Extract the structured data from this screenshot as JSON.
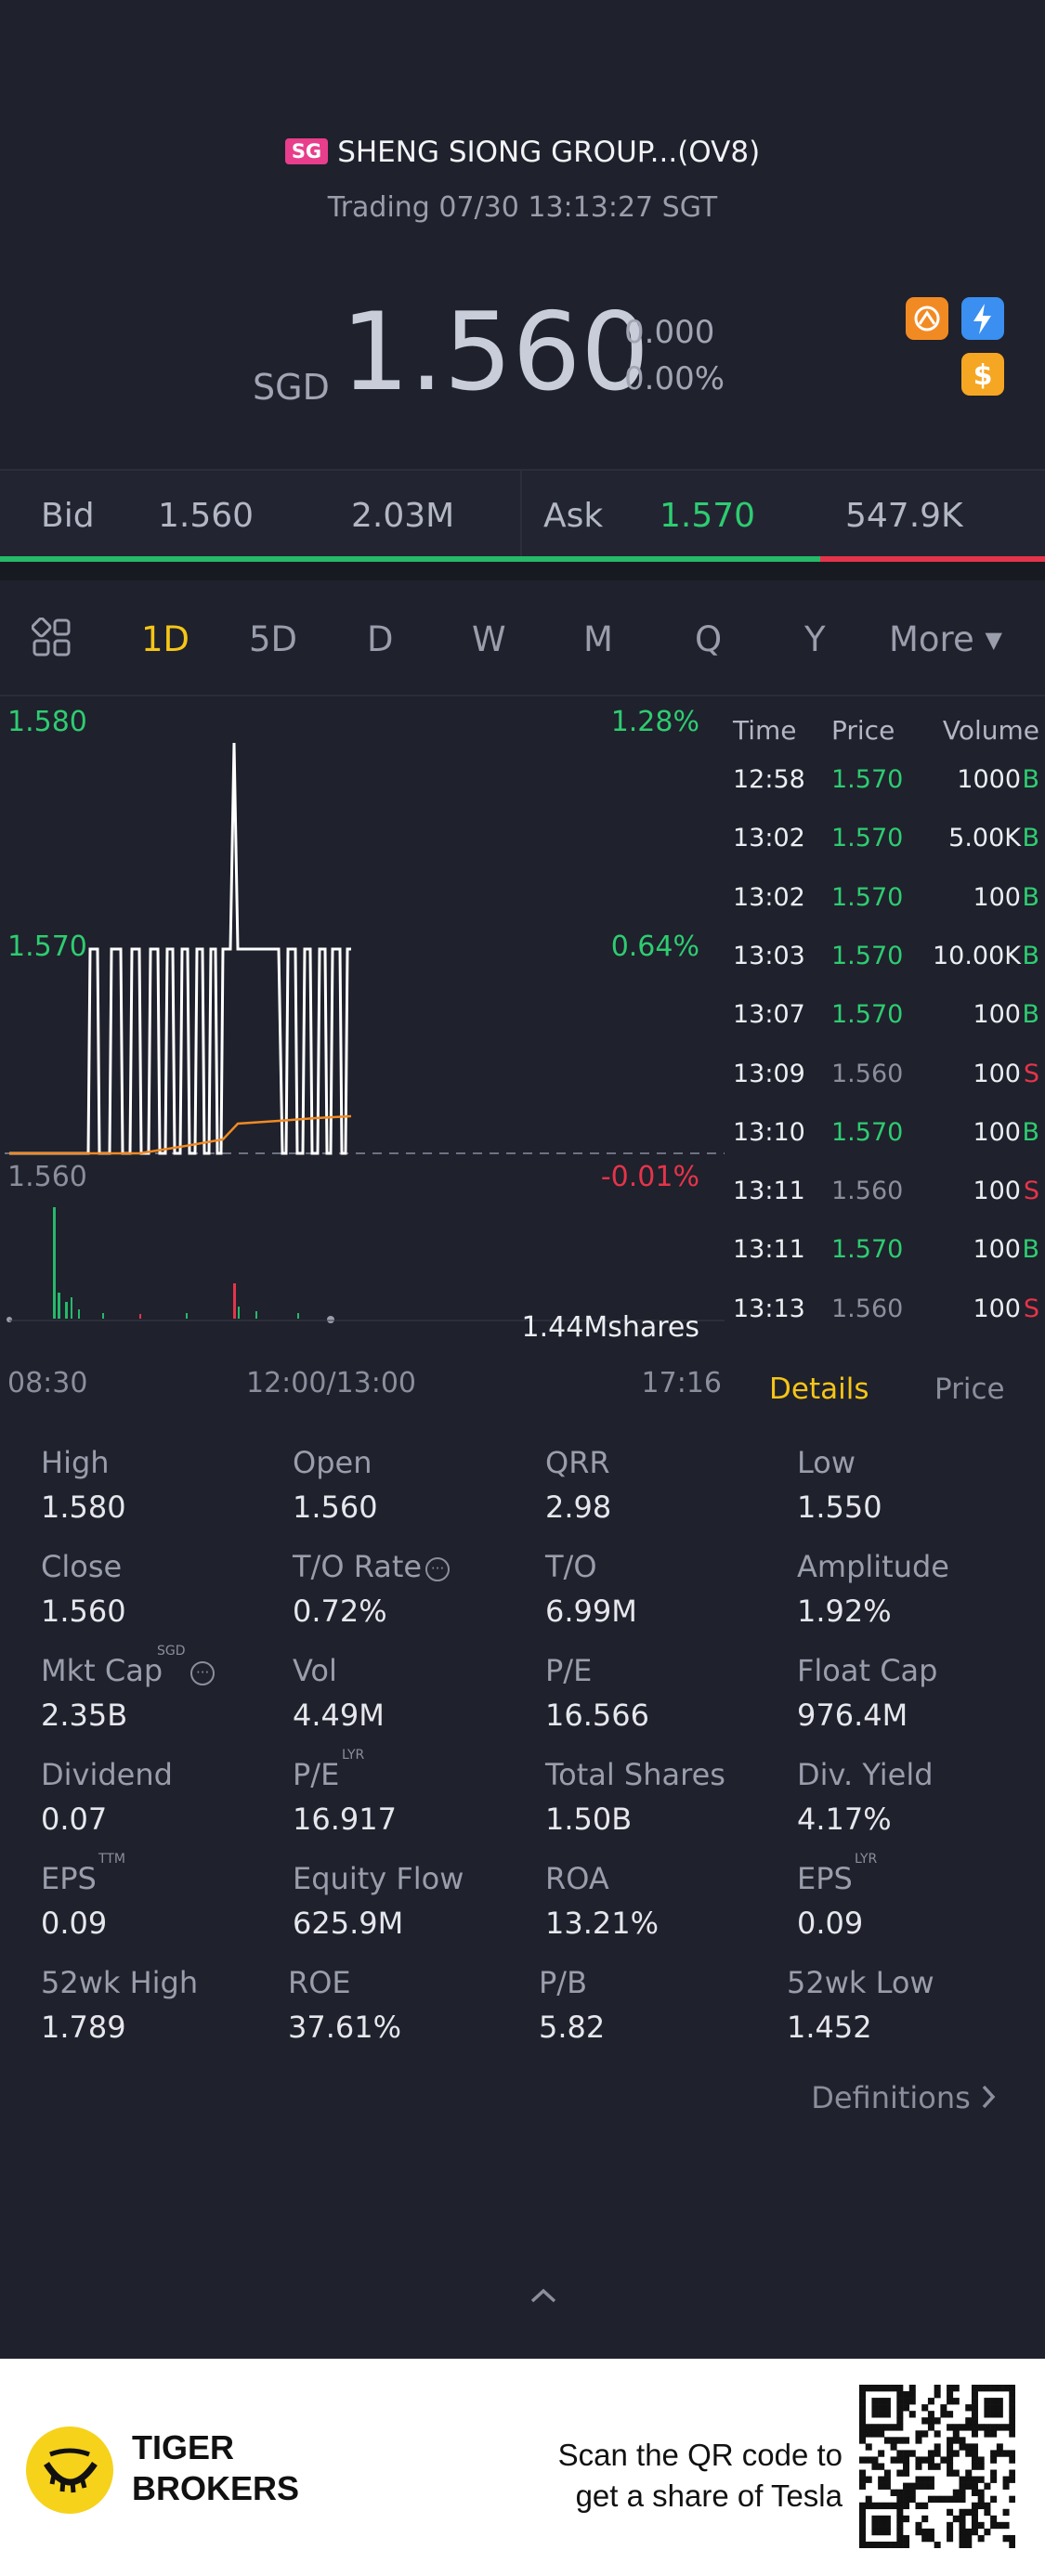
{
  "stock": {
    "market_badge": "SG",
    "name": "SHENG SIONG GROUP...(OV8)",
    "status": "Trading 07/30 13:13:27 SGT",
    "currency": "SGD",
    "price": "1.560",
    "change": "0.000",
    "change_pct": "0.00%"
  },
  "bidask": {
    "bid_label": "Bid",
    "bid_price": "1.560",
    "bid_size": "2.03M",
    "ask_label": "Ask",
    "ask_price": "1.570",
    "ask_size": "547.9K",
    "bid_ratio": 0.785
  },
  "tabs": [
    "1D",
    "5D",
    "D",
    "W",
    "M",
    "Q",
    "Y",
    "More"
  ],
  "active_tab": "1D",
  "chart": {
    "y_high": "1.580",
    "y_mid": "1.570",
    "y_low": "1.560",
    "pct_high": "1.28%",
    "pct_mid": "0.64%",
    "pct_low": "-0.01%",
    "volume_label": "1.44Mshares",
    "x_start": "08:30",
    "x_mid": "12:00/13:00",
    "x_end": "17:16"
  },
  "chart_data": {
    "type": "line",
    "x": [
      "08:30",
      "12:00/13:00",
      "17:16"
    ],
    "ylim": [
      1.56,
      1.58
    ],
    "series": [],
    "ytick_labels": [
      "1.580",
      "1.570",
      "1.560"
    ],
    "pct_labels": [
      "1.28%",
      "0.64%",
      "-0.01%"
    ],
    "volume_label": "1.44Mshares"
  },
  "ticks": {
    "headers": {
      "time": "Time",
      "price": "Price",
      "volume": "Volume"
    },
    "rows": [
      {
        "time": "12:58",
        "price": "1.570",
        "vol": "1000",
        "side": "B"
      },
      {
        "time": "13:02",
        "price": "1.570",
        "vol": "5.00K",
        "side": "B"
      },
      {
        "time": "13:02",
        "price": "1.570",
        "vol": "100",
        "side": "B"
      },
      {
        "time": "13:03",
        "price": "1.570",
        "vol": "10.00K",
        "side": "B"
      },
      {
        "time": "13:07",
        "price": "1.570",
        "vol": "100",
        "side": "B"
      },
      {
        "time": "13:09",
        "price": "1.560",
        "vol": "100",
        "side": "S"
      },
      {
        "time": "13:10",
        "price": "1.570",
        "vol": "100",
        "side": "B"
      },
      {
        "time": "13:11",
        "price": "1.560",
        "vol": "100",
        "side": "S"
      },
      {
        "time": "13:11",
        "price": "1.570",
        "vol": "100",
        "side": "B"
      },
      {
        "time": "13:13",
        "price": "1.560",
        "vol": "100",
        "side": "S"
      }
    ]
  },
  "subtabs": {
    "details": "Details",
    "price": "Price"
  },
  "stats": {
    "high": {
      "label": "High",
      "value": "1.580"
    },
    "open": {
      "label": "Open",
      "value": "1.560"
    },
    "qrr": {
      "label": "QRR",
      "value": "2.98"
    },
    "low": {
      "label": "Low",
      "value": "1.550"
    },
    "close": {
      "label": "Close",
      "value": "1.560"
    },
    "to_rate": {
      "label": "T/O Rate",
      "value": "0.72%"
    },
    "to": {
      "label": "T/O",
      "value": "6.99M"
    },
    "amplitude": {
      "label": "Amplitude",
      "value": "1.92%"
    },
    "mkt_cap": {
      "label": "Mkt Cap",
      "sup": "SGD",
      "value": "2.35B"
    },
    "vol": {
      "label": "Vol",
      "value": "4.49M"
    },
    "pe": {
      "label": "P/E",
      "value": "16.566"
    },
    "float_cap": {
      "label": "Float Cap",
      "value": "976.4M"
    },
    "dividend": {
      "label": "Dividend",
      "value": "0.07"
    },
    "pe_lyr": {
      "label": "P/E",
      "sup": "LYR",
      "value": "16.917"
    },
    "total_shares": {
      "label": "Total Shares",
      "value": "1.50B"
    },
    "div_yield": {
      "label": "Div. Yield",
      "value": "4.17%"
    },
    "eps_ttm": {
      "label": "EPS",
      "sup": "TTM",
      "value": "0.09"
    },
    "equity_flow": {
      "label": "Equity Flow",
      "value": "625.9M"
    },
    "roa": {
      "label": "ROA",
      "value": "13.21%"
    },
    "eps_lyr": {
      "label": "EPS",
      "sup": "LYR",
      "value": "0.09"
    },
    "wk52_high": {
      "label": "52wk High",
      "value": "1.789"
    },
    "roe": {
      "label": "ROE",
      "value": "37.61%"
    },
    "pb": {
      "label": "P/B",
      "value": "5.82"
    },
    "wk52_low": {
      "label": "52wk Low",
      "value": "1.452"
    }
  },
  "definitions_label": "Definitions",
  "footer": {
    "brand_line1": "TIGER",
    "brand_line2": "BROKERS",
    "scan_line1": "Scan the QR code to",
    "scan_line2": "get a share of Tesla"
  },
  "colors": {
    "up": "#2ecc71",
    "down": "#e5344a",
    "accent": "#f5c518",
    "background": "#1f212c"
  },
  "icons": [
    "grid-icon",
    "orange-badge-icon",
    "flash-icon",
    "dollar-icon",
    "chevron-up-icon",
    "chevron-right-icon",
    "dropdown-caret-icon",
    "tiger-logo-icon",
    "qr-code"
  ]
}
